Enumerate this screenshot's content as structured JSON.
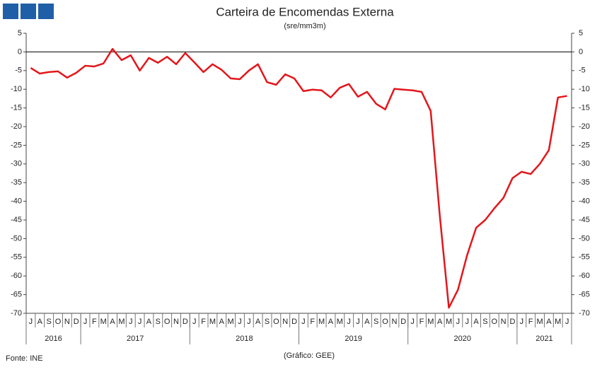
{
  "chart_data": {
    "type": "line",
    "title": "Carteira de Encomendas Externa",
    "subtitle": "(sre/mm3m)",
    "source": "Fonte: INE",
    "credit": "(Gráfico: GEE)",
    "categories": [
      "J",
      "A",
      "S",
      "O",
      "N",
      "D",
      "J",
      "F",
      "M",
      "A",
      "M",
      "J",
      "J",
      "A",
      "S",
      "O",
      "N",
      "D",
      "J",
      "F",
      "M",
      "A",
      "M",
      "J",
      "J",
      "A",
      "S",
      "O",
      "N",
      "D",
      "J",
      "F",
      "M",
      "A",
      "M",
      "J",
      "J",
      "A",
      "S",
      "O",
      "N",
      "D",
      "J",
      "F",
      "M",
      "A",
      "M",
      "J",
      "J",
      "A",
      "S",
      "O",
      "N",
      "D",
      "J",
      "F",
      "M",
      "A",
      "M",
      "J"
    ],
    "years": [
      "2016",
      "2017",
      "2018",
      "2019",
      "2020",
      "2021"
    ],
    "series": [
      {
        "color": "#e3161b",
        "values": [
          -4.3,
          -5.8,
          -5.4,
          -5.2,
          -6.9,
          -5.6,
          -3.7,
          -3.9,
          -3.1,
          0.8,
          -2.2,
          -0.9,
          -5.0,
          -1.6,
          -2.9,
          -1.3,
          -3.3,
          -0.3,
          -2.8,
          -5.4,
          -3.3,
          -4.8,
          -7.1,
          -7.3,
          -5.0,
          -3.3,
          -8.1,
          -8.8,
          -6.0,
          -7.1,
          -10.5,
          -10.1,
          -10.3,
          -12.2,
          -9.6,
          -8.6,
          -12.0,
          -10.7,
          -13.9,
          -15.4,
          -9.9,
          -10.1,
          -10.3,
          -10.7,
          -15.8,
          -43.8,
          -68.5,
          -63.7,
          -54.5,
          -47.1,
          -45.0,
          -41.9,
          -39.1,
          -33.8,
          -32.1,
          -32.7,
          -30.0,
          -26.3,
          -12.2,
          -11.8
        ]
      }
    ],
    "ylim": [
      -70,
      5
    ],
    "yticks": [
      5,
      0,
      -5,
      -10,
      -15,
      -20,
      -25,
      -30,
      -35,
      -40,
      -45,
      -50,
      -55,
      -60,
      -65,
      -70
    ]
  }
}
